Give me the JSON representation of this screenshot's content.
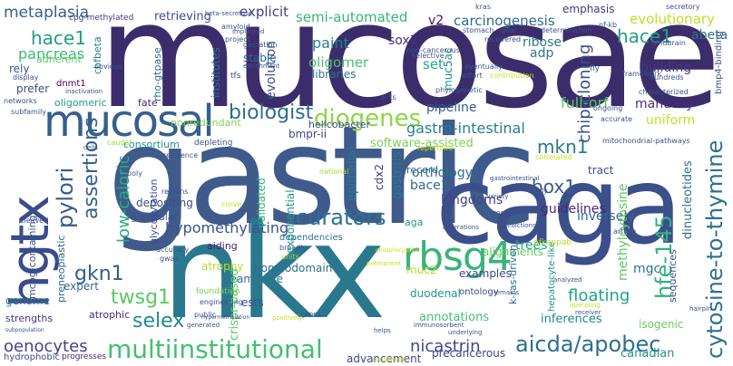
{
  "palette": [
    "#440154",
    "#3b528b",
    "#21918c",
    "#5ec962",
    "#fde725"
  ],
  "words": [
    {
      "text": "mucosae",
      "color": "#3b2d6b"
    },
    {
      "text": "gastric",
      "color": "#3e5b8c"
    },
    {
      "text": "nkx",
      "color": "#2a788e"
    },
    {
      "text": "caga",
      "color": "#3b4f8a"
    },
    {
      "text": "mucosal",
      "color": "#355f8d"
    },
    {
      "text": "hgtx",
      "color": "#3a4c89"
    },
    {
      "text": "rbsg4",
      "color": "#3bb27a"
    },
    {
      "text": "diogenes",
      "color": "#8bd646"
    },
    {
      "text": "multiinstitutional",
      "color": "#43bf71"
    },
    {
      "text": "aicda/apobec",
      "color": "#2e6f8e"
    },
    {
      "text": "curators",
      "color": "#2c728e"
    },
    {
      "text": "biologist",
      "color": "#2f6c8e"
    },
    {
      "text": "cytosine-to-thymine",
      "color": "#2d708e"
    },
    {
      "text": "pylori",
      "color": "#365d8d"
    },
    {
      "text": "assertions",
      "color": "#34618d"
    },
    {
      "text": "hfe-145",
      "color": "#2fb47c"
    },
    {
      "text": "mkn1",
      "color": "#297b8e"
    },
    {
      "text": "box1",
      "color": "#38598c"
    },
    {
      "text": "twsg1",
      "color": "#5cc863"
    },
    {
      "text": "selex",
      "color": "#23898e"
    },
    {
      "text": "gkn1",
      "color": "#355e8d"
    },
    {
      "text": "hace1",
      "color": "#1fa088"
    },
    {
      "text": "metaplasia",
      "color": "#34608d"
    },
    {
      "text": "pancreas",
      "color": "#3aba76"
    },
    {
      "text": "explicit",
      "color": "#424086"
    },
    {
      "text": "retrieving",
      "color": "#3d4e8a"
    },
    {
      "text": "semi-automated",
      "color": "#35b779"
    },
    {
      "text": "v2",
      "color": "#471063"
    },
    {
      "text": "carcinogenesis",
      "color": "#2e6e8e"
    },
    {
      "text": "evolutionary",
      "color": "#c0df25"
    },
    {
      "text": "emphasis",
      "color": "#443a83"
    },
    {
      "text": "abeta",
      "color": "#2c738e"
    },
    {
      "text": "hace1",
      "color": "#1fa088"
    },
    {
      "text": "hypomethylating",
      "color": "#3b528b"
    },
    {
      "text": "floating",
      "color": "#20a386"
    },
    {
      "text": "low-caloric",
      "color": "#27ad81"
    },
    {
      "text": "oenocytes",
      "color": "#414487"
    },
    {
      "text": "nicastrin",
      "color": "#3e4989"
    },
    {
      "text": "chip-cloning",
      "color": "#3b528b"
    },
    {
      "text": "paint",
      "color": "#26828e"
    },
    {
      "text": "sox2",
      "color": "#46337f"
    },
    {
      "text": "ribose",
      "color": "#2a788e"
    },
    {
      "text": "evolution",
      "color": "#3a548c"
    },
    {
      "text": "oligomer",
      "color": "#46c06f"
    },
    {
      "text": "set",
      "color": "#22a785"
    },
    {
      "text": "adp",
      "color": "#2a768e"
    },
    {
      "text": "muc5ac",
      "color": "#238a8d"
    },
    {
      "text": "building",
      "color": "#453882"
    },
    {
      "text": "pipeline",
      "color": "#365c8d"
    },
    {
      "text": "full-orf",
      "color": "#58c765"
    },
    {
      "text": "manually",
      "color": "#472d7b"
    },
    {
      "text": "uniform",
      "color": "#c2df23"
    },
    {
      "text": "gastro-intestinal",
      "color": "#277f8e"
    },
    {
      "text": "bmpr-ii",
      "color": "#3f4788"
    },
    {
      "text": "software-assisted",
      "color": "#7ad151"
    },
    {
      "text": "orthology",
      "color": "#2d718e"
    },
    {
      "text": "kingdoms",
      "color": "#414487"
    },
    {
      "text": "bace1",
      "color": "#31668e"
    },
    {
      "text": "guidelines",
      "color": "#482878"
    },
    {
      "text": "epithelial",
      "color": "#2a788e"
    },
    {
      "text": "gastritis",
      "color": "#277e8e"
    },
    {
      "text": "cdx2",
      "color": "#443983"
    },
    {
      "text": "inversely",
      "color": "#31678e"
    },
    {
      "text": "methylcytosine",
      "color": "#5ec962"
    },
    {
      "text": "dinucleotides",
      "color": "#2c728e"
    },
    {
      "text": "mgc",
      "color": "#2b748e"
    },
    {
      "text": "inferences",
      "color": "#24868e"
    },
    {
      "text": "annotations",
      "color": "#43bf71"
    },
    {
      "text": "advancement",
      "color": "#404688"
    },
    {
      "text": "canadian",
      "color": "#20928c"
    },
    {
      "text": "atrophy",
      "color": "#b8de29"
    },
    {
      "text": "homeodomain",
      "color": "#2d708e"
    },
    {
      "text": "deaminase",
      "color": "#2c738e"
    },
    {
      "text": "ests",
      "color": "#3b528b"
    },
    {
      "text": "trees",
      "color": "#20a386"
    },
    {
      "text": "alignments",
      "color": "#5ec962"
    },
    {
      "text": "duodenal",
      "color": "#1f988b"
    },
    {
      "text": "examples",
      "color": "#3f4889"
    },
    {
      "text": "muc2",
      "color": "#b5de2b"
    },
    {
      "text": "precancerous",
      "color": "#404588"
    },
    {
      "text": "exponential",
      "color": "#1f9e89"
    },
    {
      "text": "validated",
      "color": "#31b57b"
    },
    {
      "text": "genome",
      "color": "#2c728e"
    },
    {
      "text": "strengths",
      "color": "#453781"
    },
    {
      "text": "expert",
      "color": "#31668e"
    },
    {
      "text": "atrophic",
      "color": "#472c7a"
    },
    {
      "text": "depositing",
      "color": "#3e4c8a"
    },
    {
      "text": "glandular",
      "color": "#3d4d8a"
    },
    {
      "text": "glycosylation",
      "color": "#3d4d8a"
    },
    {
      "text": "aiding",
      "color": "#482475"
    },
    {
      "text": "crispr-based",
      "color": "#5ec962"
    },
    {
      "text": "preneoplastic",
      "color": "#2f6b8e"
    },
    {
      "text": "mcpg-containing",
      "color": "#3b528b"
    },
    {
      "text": "rely",
      "color": "#39568c"
    },
    {
      "text": "prefer",
      "color": "#3e4989"
    },
    {
      "text": "dnmt1",
      "color": "#440154"
    },
    {
      "text": "adherent",
      "color": "#5ec962"
    },
    {
      "text": "cbfbeta",
      "color": "#26828e"
    },
    {
      "text": "cpg-methylated",
      "color": "#463480"
    },
    {
      "text": "stable",
      "color": "#31668e"
    },
    {
      "text": "institutes",
      "color": "#2c728e"
    },
    {
      "text": "rho-gtpase",
      "color": "#2c728e"
    },
    {
      "text": "libraries",
      "color": "#2b748e"
    },
    {
      "text": "oligomeric",
      "color": "#1f9a8a"
    },
    {
      "text": "fate",
      "color": "#482677"
    },
    {
      "text": "nonredundant",
      "color": "#7fd34e"
    },
    {
      "text": "helicobacter",
      "color": "#3e4a89"
    },
    {
      "text": "consortium",
      "color": "#21918c"
    },
    {
      "text": "record",
      "color": "#31688e"
    },
    {
      "text": "tract",
      "color": "#3b528b"
    },
    {
      "text": "isogenic",
      "color": "#6ccd5a"
    },
    {
      "text": "k-ras-driven",
      "color": "#2e6d8e"
    },
    {
      "text": "sequences",
      "color": "#3b528b"
    },
    {
      "text": "bmp4-binding",
      "color": "#3b528b"
    },
    {
      "text": "ontology",
      "color": "#3e4a89"
    },
    {
      "text": "hepatocyte-like",
      "color": "#21918c"
    },
    {
      "text": "aga",
      "color": "#1f9a8a"
    },
    {
      "text": "nfkappab",
      "color": "#b5de2b"
    },
    {
      "text": "hydrophobic",
      "color": "#3e4a89"
    },
    {
      "text": "progresses",
      "color": "#481f70"
    },
    {
      "text": "foundation",
      "color": "#7ad151"
    },
    {
      "text": "engineering",
      "color": "#3b528b"
    },
    {
      "text": "public",
      "color": "#3b528b"
    },
    {
      "text": "gwas",
      "color": "#3b528b"
    },
    {
      "text": "accuracy",
      "color": "#3b528b"
    },
    {
      "text": "broadly",
      "color": "#3b528b"
    },
    {
      "text": "units",
      "color": "#a2da37"
    },
    {
      "text": "dependencies",
      "color": "#2c728e"
    },
    {
      "text": "national",
      "color": "#a2da37"
    },
    {
      "text": "repertoire",
      "color": "#cae11f"
    },
    {
      "text": "depleting",
      "color": "#3b528b"
    },
    {
      "text": "reference",
      "color": "#3b528b"
    },
    {
      "text": "regions",
      "color": "#3b528b"
    },
    {
      "text": "poly",
      "color": "#3b528b"
    },
    {
      "text": "curve",
      "color": "#cae11f"
    },
    {
      "text": "cleaved",
      "color": "#3b528b"
    },
    {
      "text": "networks",
      "color": "#3b528b"
    },
    {
      "text": "subfamily",
      "color": "#3b528b"
    },
    {
      "text": "display",
      "color": "#3b528b"
    },
    {
      "text": "caudal",
      "color": "#a2da37"
    },
    {
      "text": "amyloid",
      "color": "#3b528b"
    },
    {
      "text": "project",
      "color": "#3b528b"
    },
    {
      "text": "obvious",
      "color": "#3b528b"
    },
    {
      "text": "inactivation",
      "color": "#3b528b"
    },
    {
      "text": "tfs",
      "color": "#3b528b"
    },
    {
      "text": "gestation",
      "color": "#3b528b"
    },
    {
      "text": "enrichment",
      "color": "#3b528b"
    },
    {
      "text": "implanted",
      "color": "#3b528b"
    },
    {
      "text": "beta-secretase",
      "color": "#3b528b"
    },
    {
      "text": "kras",
      "color": "#3b528b"
    },
    {
      "text": "stomach",
      "color": "#3b528b"
    },
    {
      "text": "goal",
      "color": "#3b528b"
    },
    {
      "text": "determination",
      "color": "#3b528b"
    },
    {
      "text": "nf-kb",
      "color": "#3b528b"
    },
    {
      "text": "secretory",
      "color": "#3b528b"
    },
    {
      "text": "recovered",
      "color": "#3b528b"
    },
    {
      "text": "non-cancerous",
      "color": "#3b528b"
    },
    {
      "text": "selective",
      "color": "#3b528b"
    },
    {
      "text": "hindbrain",
      "color": "#3b528b"
    },
    {
      "text": "eventually",
      "color": "#3b528b"
    },
    {
      "text": "effort",
      "color": "#3b528b"
    },
    {
      "text": "contribution",
      "color": "#cae11f"
    },
    {
      "text": "fly",
      "color": "#3b528b"
    },
    {
      "text": "hundreds",
      "color": "#3b528b"
    },
    {
      "text": "framework",
      "color": "#3b528b"
    },
    {
      "text": "characterized",
      "color": "#3b528b"
    },
    {
      "text": "phylogenetic",
      "color": "#3b528b"
    },
    {
      "text": "acts",
      "color": "#3b528b"
    },
    {
      "text": "ongoing",
      "color": "#3b528b"
    },
    {
      "text": "accurate",
      "color": "#3b528b"
    },
    {
      "text": "mitochondrial-pathways",
      "color": "#3b528b"
    },
    {
      "text": "correlated",
      "color": "#cae11f"
    },
    {
      "text": "family",
      "color": "#3b528b"
    },
    {
      "text": "variety",
      "color": "#3b528b"
    },
    {
      "text": "gastrointestinal",
      "color": "#3b528b"
    },
    {
      "text": "processes",
      "color": "#3b528b"
    },
    {
      "text": "predictions",
      "color": "#3b528b"
    },
    {
      "text": "article",
      "color": "#3b528b"
    },
    {
      "text": "aberrations",
      "color": "#3b528b"
    },
    {
      "text": "analyzed",
      "color": "#3b528b"
    },
    {
      "text": "operating",
      "color": "#cae11f"
    },
    {
      "text": "receiver",
      "color": "#3b528b"
    },
    {
      "text": "hairpin",
      "color": "#3b528b"
    },
    {
      "text": "remains",
      "color": "#3b528b"
    },
    {
      "text": "helps",
      "color": "#3b528b"
    },
    {
      "text": "immunosorbent",
      "color": "#3b528b"
    },
    {
      "text": "considered",
      "color": "#cae11f"
    },
    {
      "text": "underlying",
      "color": "#3b528b"
    },
    {
      "text": "genes",
      "color": "#3b528b"
    },
    {
      "text": "positively",
      "color": "#cae11f"
    },
    {
      "text": "generated",
      "color": "#3b528b"
    },
    {
      "text": "hypermethylation",
      "color": "#3b528b"
    },
    {
      "text": "subpopulation",
      "color": "#3b528b"
    },
    {
      "text": "cells",
      "color": "#3b528b"
    },
    {
      "text": "permanent",
      "color": "#cae11f"
    },
    {
      "text": "phosphorylation",
      "color": "#cae11f"
    }
  ]
}
